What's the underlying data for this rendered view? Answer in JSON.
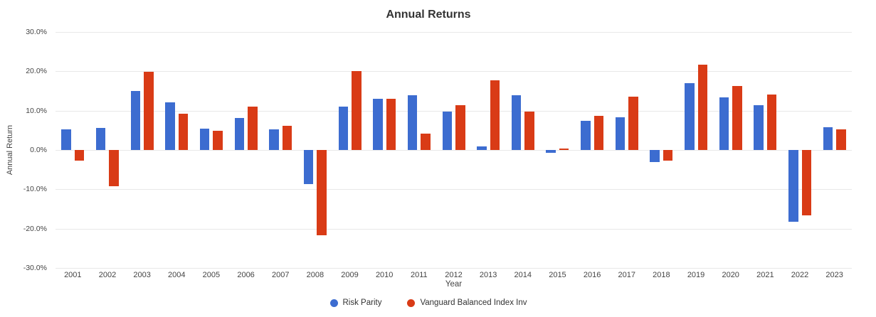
{
  "chart_data": {
    "type": "bar",
    "title": "Annual Returns",
    "xlabel": "Year",
    "ylabel": "Annual Return",
    "ylim": [
      -30,
      30
    ],
    "grid": true,
    "legend_position": "bottom",
    "ytick_labels": [
      "30.0%",
      "20.0%",
      "10.0%",
      "0.0%",
      "-10.0%",
      "-20.0%",
      "-30.0%"
    ],
    "categories": [
      "2001",
      "2002",
      "2003",
      "2004",
      "2005",
      "2006",
      "2007",
      "2008",
      "2009",
      "2010",
      "2011",
      "2012",
      "2013",
      "2014",
      "2015",
      "2016",
      "2017",
      "2018",
      "2019",
      "2020",
      "2021",
      "2022",
      "2023"
    ],
    "series": [
      {
        "name": "Risk Parity",
        "color": "#3c6cd0",
        "values": [
          5.3,
          5.6,
          15.0,
          12.1,
          5.5,
          8.1,
          5.2,
          -8.7,
          11.1,
          13.1,
          13.9,
          9.7,
          0.9,
          14.0,
          -0.8,
          7.5,
          8.3,
          -3.0,
          17.0,
          13.3,
          11.3,
          -18.2,
          5.7
        ]
      },
      {
        "name": "Vanguard Balanced Index Inv",
        "color": "#d93b16",
        "values": [
          -2.8,
          -9.3,
          19.9,
          9.3,
          4.8,
          11.0,
          6.2,
          -21.7,
          20.1,
          13.1,
          4.1,
          11.3,
          17.8,
          9.8,
          0.4,
          8.7,
          13.6,
          -2.8,
          21.6,
          16.2,
          14.1,
          -16.6,
          5.3
        ]
      }
    ]
  }
}
